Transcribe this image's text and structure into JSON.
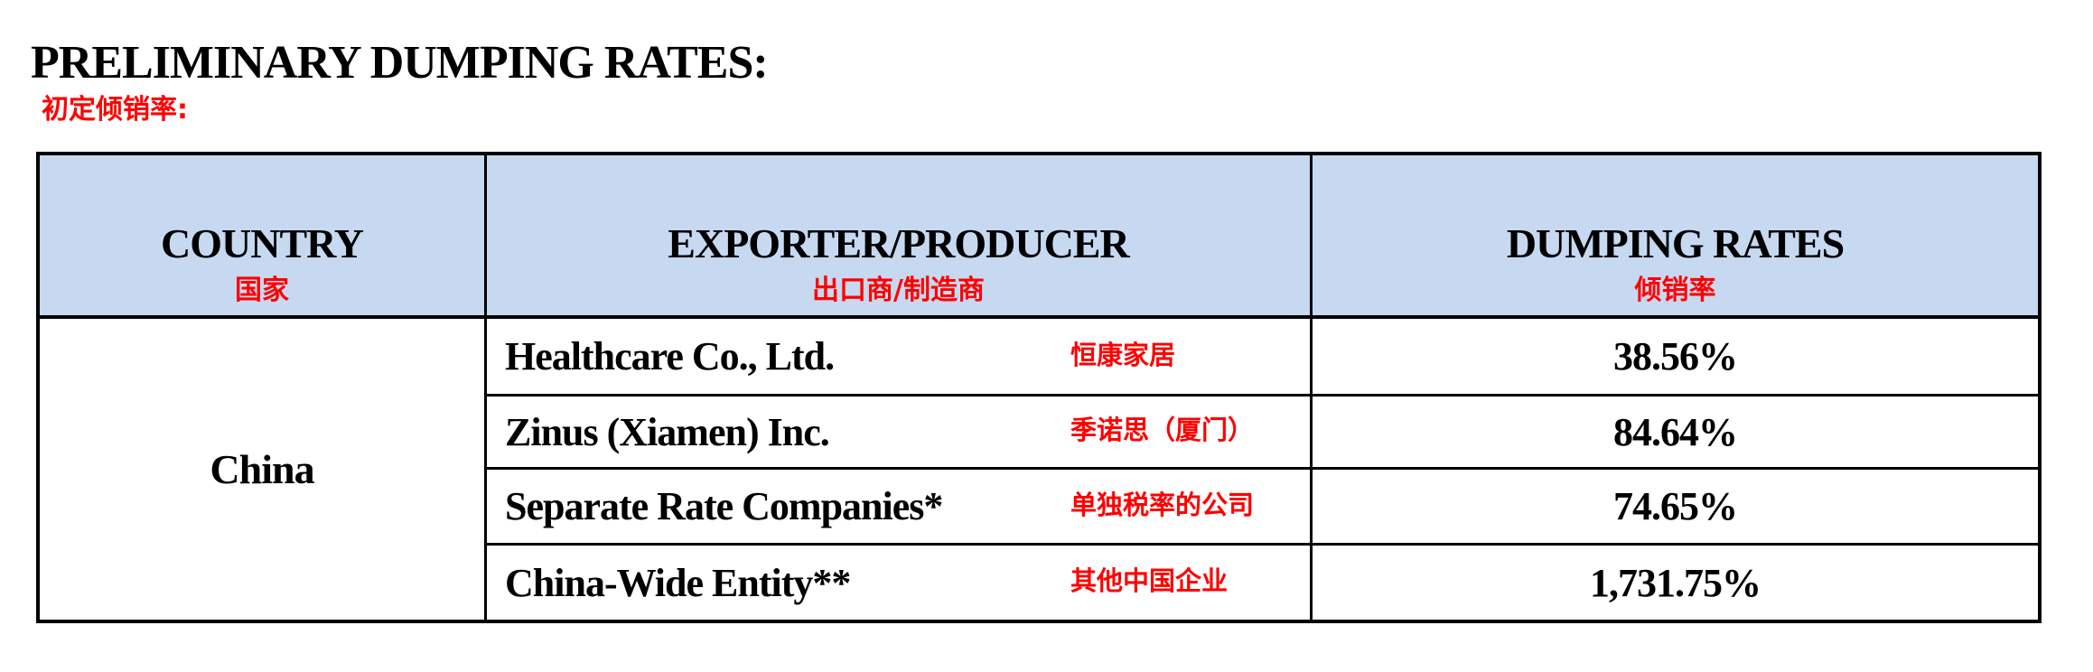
{
  "page": {
    "title": "PRELIMINARY DUMPING RATES:",
    "subtitle_zh": "初定倾销率:"
  },
  "table": {
    "headers": {
      "country": {
        "en": "COUNTRY",
        "zh": "国家"
      },
      "exporter": {
        "en": "EXPORTER/PRODUCER",
        "zh": "出口商/制造商"
      },
      "rates": {
        "en": "DUMPING RATES",
        "zh": "倾销率"
      }
    },
    "country": "China",
    "rows": [
      {
        "exporter_en": "Healthcare Co., Ltd.",
        "exporter_zh": "恒康家居",
        "rate": "38.56%"
      },
      {
        "exporter_en": "Zinus (Xiamen) Inc.",
        "exporter_zh": "季诺思（厦门）",
        "rate": "84.64%"
      },
      {
        "exporter_en": "Separate Rate Companies*",
        "exporter_zh": "单独税率的公司",
        "rate": "74.65%"
      },
      {
        "exporter_en": "China-Wide Entity**",
        "exporter_zh": "其他中国企业",
        "rate": "1,731.75%"
      }
    ],
    "colors": {
      "header_bg": "#c6d9f1",
      "accent_red": "#ff0000",
      "border": "#000000"
    }
  }
}
